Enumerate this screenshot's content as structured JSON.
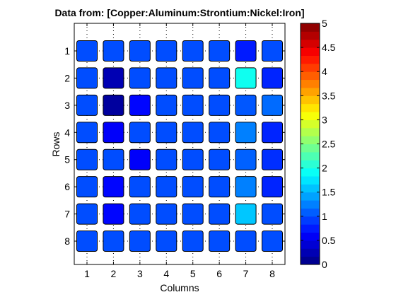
{
  "chart_data": {
    "type": "heatmap",
    "title": "Data from: [Copper:Aluminum:Strontium:Nickel:Iron]",
    "xlabel": "Columns",
    "ylabel": "Rows",
    "x_ticks": [
      "1",
      "2",
      "3",
      "4",
      "5",
      "6",
      "7",
      "8"
    ],
    "y_ticks": [
      "1",
      "2",
      "3",
      "4",
      "5",
      "6",
      "7",
      "8"
    ],
    "grid": true,
    "colorbar": {
      "range": [
        0,
        5
      ],
      "ticks": [
        "0",
        "0.5",
        "1",
        "1.5",
        "2",
        "2.5",
        "3",
        "3.5",
        "4",
        "4.5",
        "5"
      ],
      "placement": "right"
    },
    "values": [
      [
        1.0,
        1.0,
        1.0,
        1.0,
        1.0,
        1.0,
        0.75,
        1.0
      ],
      [
        1.0,
        0.25,
        1.0,
        1.0,
        1.0,
        1.0,
        1.95,
        0.8
      ],
      [
        1.0,
        0.15,
        0.65,
        1.0,
        1.0,
        1.0,
        1.05,
        1.15
      ],
      [
        1.0,
        0.6,
        1.0,
        1.0,
        1.0,
        1.0,
        1.25,
        0.8
      ],
      [
        1.0,
        1.0,
        0.6,
        1.0,
        1.0,
        1.0,
        1.1,
        0.85
      ],
      [
        1.0,
        0.65,
        1.0,
        1.0,
        1.0,
        1.0,
        1.25,
        0.8
      ],
      [
        1.0,
        0.65,
        1.0,
        1.0,
        1.0,
        1.0,
        1.6,
        1.0
      ],
      [
        1.0,
        1.0,
        1.0,
        1.0,
        1.0,
        1.0,
        1.0,
        1.0
      ]
    ]
  }
}
